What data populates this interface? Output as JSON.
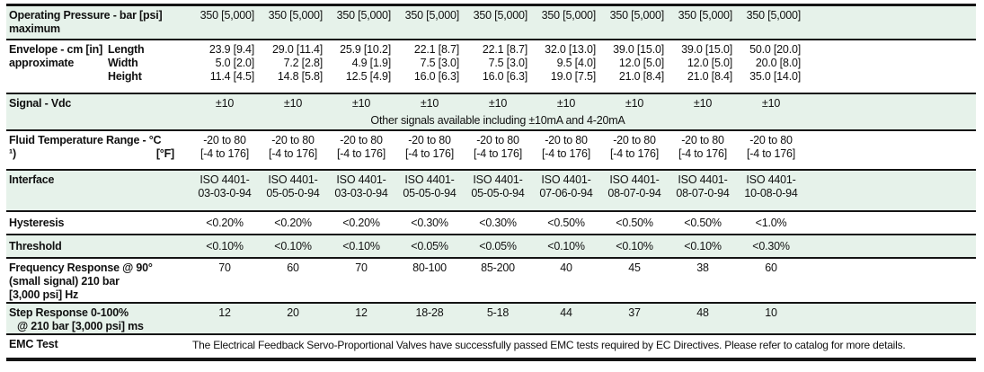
{
  "accent": {
    "row_tint": "#e6f2ea",
    "line_color": "#141414",
    "text_color": "#111111"
  },
  "rows": {
    "operating_pressure": {
      "label_line1": "Operating Pressure - bar [psi]",
      "label_line2": "maximum",
      "values": [
        "350 [5,000]",
        "350 [5,000]",
        "350 [5,000]",
        "350 [5,000]",
        "350 [5,000]",
        "350 [5,000]",
        "350 [5,000]",
        "350 [5,000]",
        "350 [5,000]"
      ]
    },
    "envelope": {
      "label_line1": "Envelope - cm [in]",
      "label_line2": "approximate",
      "sub_labels": {
        "length": "Length",
        "width": "Width",
        "height": "Height"
      },
      "length": [
        "23.9 [9.4]",
        "29.0 [11.4]",
        "25.9 [10.2]",
        "22.1 [8.7]",
        "22.1 [8.7]",
        "32.0 [13.0]",
        "39.0 [15.0]",
        "39.0 [15.0]",
        "50.0 [20.0]"
      ],
      "width": [
        "5.0 [2.0]",
        "7.2 [2.8]",
        "4.9 [1.9]",
        "7.5 [3.0]",
        "7.5 [3.0]",
        "9.5 [4.0]",
        "12.0 [5.0]",
        "12.0 [5.0]",
        "20.0 [8.0]"
      ],
      "height": [
        "11.4 [4.5]",
        "14.8 [5.8]",
        "12.5 [4.9]",
        "16.0 [6.3]",
        "16.0 [6.3]",
        "19.0 [7.5]",
        "21.0 [8.4]",
        "21.0 [8.4]",
        "35.0 [14.0]"
      ]
    },
    "signal": {
      "label": "Signal - Vdc",
      "values": [
        "±10",
        "±10",
        "±10",
        "±10",
        "±10",
        "±10",
        "±10",
        "±10",
        "±10"
      ],
      "note": "Other signals available including ±10mA and 4-20mA"
    },
    "fluid_temp": {
      "label_line1": "Fluid Temperature Range - °C",
      "footnote_mark": "¹)",
      "label_line2_right": "[°F]",
      "values_c": [
        "-20 to 80",
        "-20 to 80",
        "-20 to 80",
        "-20 to 80",
        "-20 to 80",
        "-20 to 80",
        "-20 to 80",
        "-20 to 80",
        "-20 to 80"
      ],
      "values_f": [
        "[-4 to 176]",
        "[-4 to 176]",
        "[-4 to 176]",
        "[-4 to 176]",
        "[-4 to 176]",
        "[-4 to 176]",
        "[-4 to 176]",
        "[-4 to 176]",
        "[-4 to 176]"
      ]
    },
    "interface": {
      "label": "Interface",
      "values_line1": [
        "ISO 4401-",
        "ISO 4401-",
        "ISO 4401-",
        "ISO 4401-",
        "ISO 4401-",
        "ISO 4401-",
        "ISO 4401-",
        "ISO 4401-",
        "ISO 4401-"
      ],
      "values_line2": [
        "03-03-0-94",
        "05-05-0-94",
        "03-03-0-94",
        "05-05-0-94",
        "05-05-0-94",
        "07-06-0-94",
        "08-07-0-94",
        "08-07-0-94",
        "10-08-0-94"
      ]
    },
    "hysteresis": {
      "label": "Hysteresis",
      "values": [
        "<0.20%",
        "<0.20%",
        "<0.20%",
        "<0.30%",
        "<0.30%",
        "<0.50%",
        "<0.50%",
        "<0.50%",
        "<1.0%"
      ]
    },
    "threshold": {
      "label": "Threshold",
      "values": [
        "<0.10%",
        "<0.10%",
        "<0.10%",
        "<0.05%",
        "<0.05%",
        "<0.10%",
        "<0.10%",
        "<0.10%",
        "<0.30%"
      ]
    },
    "frequency_response": {
      "label_line1": "Frequency Response @ 90°",
      "label_line2": "(small signal) 210 bar",
      "label_line3": "[3,000 psi] Hz",
      "values": [
        "70",
        "60",
        "70",
        "80-100",
        "85-200",
        "40",
        "45",
        "38",
        "60"
      ]
    },
    "step_response": {
      "label_line1": "Step Response 0-100%",
      "label_line2": "@ 210 bar [3,000 psi] ms",
      "values": [
        "12",
        "20",
        "12",
        "18-28",
        "5-18",
        "44",
        "37",
        "48",
        "10"
      ]
    },
    "emc": {
      "label": "EMC Test",
      "text": "The Electrical Feedback Servo-Proportional Valves have successfully passed EMC tests required by EC Directives. Please refer to catalog for more details."
    }
  }
}
